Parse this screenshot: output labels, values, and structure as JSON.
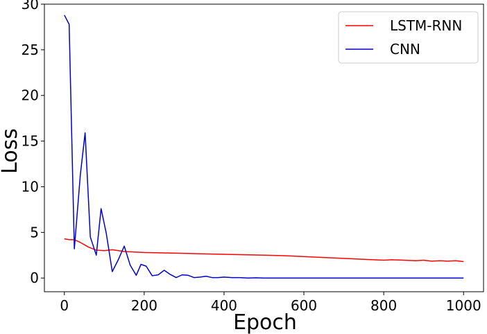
{
  "chart_data": {
    "type": "line",
    "title": "",
    "xlabel": "Epoch",
    "ylabel": "Loss",
    "xlim": [
      -50,
      1050
    ],
    "ylim": [
      -1.5,
      30
    ],
    "xticks": [
      0,
      200,
      400,
      600,
      800,
      1000
    ],
    "yticks": [
      0,
      5,
      10,
      15,
      20,
      25,
      30
    ],
    "grid": false,
    "legend_position": "top-right",
    "series": [
      {
        "name": "LSTM-RNN",
        "color": "#ff0000",
        "x": [
          0,
          12,
          25,
          40,
          60,
          80,
          100,
          120,
          150,
          200,
          250,
          300,
          350,
          400,
          450,
          500,
          550,
          600,
          650,
          700,
          750,
          800,
          820,
          850,
          880,
          900,
          920,
          940,
          960,
          980,
          1000
        ],
        "y": [
          4.3,
          4.2,
          4.2,
          3.9,
          3.4,
          3.05,
          3.0,
          3.1,
          2.9,
          2.8,
          2.75,
          2.7,
          2.65,
          2.6,
          2.55,
          2.5,
          2.45,
          2.35,
          2.25,
          2.15,
          2.05,
          1.95,
          2.0,
          1.95,
          1.9,
          1.95,
          1.85,
          1.9,
          1.85,
          1.9,
          1.8
        ]
      },
      {
        "name": "CNN",
        "color": "#0000cc",
        "x": [
          0,
          12,
          25,
          40,
          52,
          65,
          80,
          92,
          105,
          120,
          135,
          150,
          165,
          180,
          192,
          205,
          220,
          235,
          250,
          265,
          280,
          295,
          310,
          325,
          340,
          355,
          370,
          385,
          400,
          420,
          440,
          460,
          480,
          500,
          550,
          600,
          650,
          700,
          750,
          800,
          850,
          900,
          950,
          1000
        ],
        "y": [
          28.8,
          27.8,
          3.2,
          11.3,
          15.9,
          4.5,
          2.5,
          7.6,
          4.9,
          0.7,
          2.0,
          3.5,
          1.4,
          0.3,
          1.5,
          1.3,
          0.25,
          0.35,
          0.85,
          0.4,
          0.05,
          0.35,
          0.3,
          0.05,
          0.1,
          0.2,
          0.05,
          0.05,
          0.1,
          0.05,
          0.05,
          0.0,
          0.03,
          0.0,
          0.0,
          0.0,
          0.0,
          0.0,
          0.0,
          0.0,
          0.0,
          0.0,
          0.0,
          0.0
        ]
      }
    ]
  }
}
